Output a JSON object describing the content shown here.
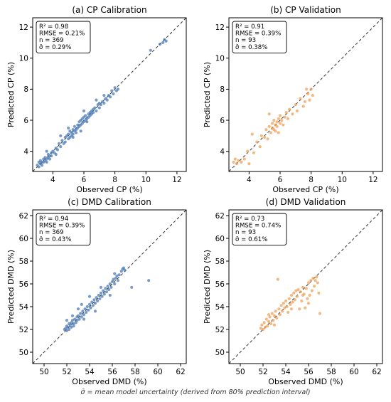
{
  "figure": {
    "footnote": "σ̄ = mean model uncertainty (derived from 80% prediction interval)"
  },
  "chart_data": [
    {
      "type": "scatter",
      "title": "(a) CP Calibration",
      "xlabel": "Observed CP (%)",
      "ylabel": "Predicted CP (%)",
      "xlim": [
        2.7,
        12.6
      ],
      "ylim": [
        2.7,
        12.6
      ],
      "xticks": [
        4,
        6,
        8,
        10,
        12
      ],
      "yticks": [
        4,
        6,
        8,
        10,
        12
      ],
      "color": "#4C7BB4",
      "reference_line": "1:1",
      "stats": [
        "R² = 0.98",
        "RMSE = 0.21%",
        "n = 369",
        "σ̄ = 0.29%"
      ],
      "legend_position": "top-left",
      "points": [
        [
          3.0,
          3.1
        ],
        [
          3.1,
          3.0
        ],
        [
          3.1,
          3.3
        ],
        [
          3.2,
          3.2
        ],
        [
          3.2,
          3.4
        ],
        [
          3.3,
          3.3
        ],
        [
          3.3,
          3.1
        ],
        [
          3.4,
          3.5
        ],
        [
          3.4,
          3.3
        ],
        [
          3.5,
          3.4
        ],
        [
          3.5,
          3.6
        ],
        [
          3.6,
          3.5
        ],
        [
          3.6,
          3.3
        ],
        [
          3.7,
          3.6
        ],
        [
          3.7,
          3.8
        ],
        [
          3.8,
          3.7
        ],
        [
          3.8,
          3.5
        ],
        [
          3.9,
          3.9
        ],
        [
          3.9,
          3.7
        ],
        [
          4.0,
          4.0
        ],
        [
          4.1,
          3.9
        ],
        [
          4.2,
          4.2
        ],
        [
          4.3,
          4.1
        ],
        [
          4.4,
          4.5
        ],
        [
          4.5,
          4.3
        ],
        [
          4.6,
          4.7
        ],
        [
          4.7,
          4.5
        ],
        [
          4.8,
          4.9
        ],
        [
          4.8,
          4.6
        ],
        [
          4.9,
          5.0
        ],
        [
          5.0,
          4.8
        ],
        [
          5.0,
          5.1
        ],
        [
          5.1,
          4.9
        ],
        [
          5.1,
          5.3
        ],
        [
          5.2,
          5.0
        ],
        [
          5.2,
          5.2
        ],
        [
          5.3,
          5.4
        ],
        [
          5.3,
          5.1
        ],
        [
          5.4,
          5.3
        ],
        [
          5.4,
          5.6
        ],
        [
          5.5,
          5.4
        ],
        [
          5.5,
          5.2
        ],
        [
          5.6,
          5.7
        ],
        [
          5.6,
          5.5
        ],
        [
          5.7,
          5.6
        ],
        [
          5.7,
          5.9
        ],
        [
          5.8,
          5.7
        ],
        [
          5.8,
          6.0
        ],
        [
          5.9,
          5.8
        ],
        [
          5.9,
          6.1
        ],
        [
          6.0,
          5.9
        ],
        [
          6.0,
          6.2
        ],
        [
          6.1,
          6.0
        ],
        [
          6.1,
          6.3
        ],
        [
          6.2,
          6.1
        ],
        [
          6.2,
          5.9
        ],
        [
          6.3,
          6.4
        ],
        [
          6.3,
          6.2
        ],
        [
          6.4,
          6.5
        ],
        [
          6.4,
          6.3
        ],
        [
          6.5,
          6.6
        ],
        [
          6.5,
          6.4
        ],
        [
          6.6,
          6.7
        ],
        [
          6.6,
          6.5
        ],
        [
          6.7,
          6.8
        ],
        [
          6.8,
          6.6
        ],
        [
          6.9,
          7.0
        ],
        [
          7.0,
          6.8
        ],
        [
          7.0,
          7.1
        ],
        [
          7.1,
          7.0
        ],
        [
          7.2,
          7.2
        ],
        [
          7.3,
          7.1
        ],
        [
          7.4,
          7.4
        ],
        [
          7.5,
          7.3
        ],
        [
          7.6,
          7.6
        ],
        [
          7.7,
          7.5
        ],
        [
          7.8,
          7.9
        ],
        [
          7.9,
          7.7
        ],
        [
          8.0,
          8.1
        ],
        [
          8.1,
          7.9
        ],
        [
          8.2,
          8.0
        ],
        [
          5.0,
          5.5
        ],
        [
          5.3,
          4.9
        ],
        [
          4.5,
          5.0
        ],
        [
          6.8,
          7.3
        ],
        [
          7.3,
          7.6
        ],
        [
          5.8,
          5.3
        ],
        [
          4.2,
          3.8
        ],
        [
          6.0,
          6.6
        ],
        [
          3.6,
          4.0
        ],
        [
          10.3,
          10.5
        ],
        [
          10.9,
          10.9
        ],
        [
          11.1,
          11.0
        ],
        [
          11.2,
          11.2
        ],
        [
          11.3,
          11.1
        ]
      ]
    },
    {
      "type": "scatter",
      "title": "(b) CP Validation",
      "xlabel": "Observed CP (%)",
      "ylabel": "Predicted CP (%)",
      "xlim": [
        2.7,
        12.6
      ],
      "ylim": [
        2.7,
        12.6
      ],
      "xticks": [
        4,
        6,
        8,
        10,
        12
      ],
      "yticks": [
        4,
        6,
        8,
        10,
        12
      ],
      "color": "#F0A158",
      "reference_line": "1:1",
      "stats": [
        "R² = 0.91",
        "RMSE = 0.39%",
        "n = 93",
        "σ̄ = 0.38%"
      ],
      "legend_position": "top-left",
      "points": [
        [
          3.0,
          3.3
        ],
        [
          3.1,
          3.5
        ],
        [
          3.2,
          3.2
        ],
        [
          3.3,
          3.4
        ],
        [
          3.5,
          3.3
        ],
        [
          3.7,
          3.5
        ],
        [
          3.9,
          4.0
        ],
        [
          4.0,
          3.2
        ],
        [
          4.2,
          5.1
        ],
        [
          4.3,
          3.9
        ],
        [
          4.5,
          4.6
        ],
        [
          4.7,
          4.3
        ],
        [
          4.8,
          5.0
        ],
        [
          5.0,
          4.9
        ],
        [
          5.1,
          5.4
        ],
        [
          5.2,
          4.8
        ],
        [
          5.3,
          5.6
        ],
        [
          5.4,
          5.2
        ],
        [
          5.5,
          5.8
        ],
        [
          5.5,
          5.5
        ],
        [
          5.6,
          5.4
        ],
        [
          5.6,
          6.0
        ],
        [
          5.7,
          5.7
        ],
        [
          5.7,
          5.3
        ],
        [
          5.8,
          5.9
        ],
        [
          5.8,
          5.6
        ],
        [
          5.9,
          6.1
        ],
        [
          6.0,
          5.8
        ],
        [
          6.0,
          6.3
        ],
        [
          6.1,
          6.0
        ],
        [
          6.2,
          5.7
        ],
        [
          6.3,
          6.2
        ],
        [
          6.4,
          6.5
        ],
        [
          6.5,
          6.1
        ],
        [
          6.6,
          6.7
        ],
        [
          6.8,
          6.4
        ],
        [
          7.0,
          7.0
        ],
        [
          7.1,
          6.6
        ],
        [
          7.3,
          7.4
        ],
        [
          7.5,
          6.9
        ],
        [
          7.6,
          7.2
        ],
        [
          7.8,
          7.7
        ],
        [
          7.9,
          7.3
        ],
        [
          8.0,
          8.0
        ],
        [
          8.1,
          7.6
        ],
        [
          7.7,
          8.0
        ],
        [
          5.3,
          6.4
        ],
        [
          5.9,
          5.2
        ]
      ]
    },
    {
      "type": "scatter",
      "title": "(c) DMD Calibration",
      "xlabel": "Observed DMD (%)",
      "ylabel": "Predicted DMD (%)",
      "xlim": [
        49.0,
        62.5
      ],
      "ylim": [
        49.0,
        62.5
      ],
      "xticks": [
        50,
        52,
        54,
        56,
        58,
        60,
        62
      ],
      "yticks": [
        50,
        52,
        54,
        56,
        58,
        60,
        62
      ],
      "color": "#4C7BB4",
      "reference_line": "1:1",
      "stats": [
        "R² = 0.94",
        "RMSE = 0.39%",
        "n = 369",
        "σ̄ = 0.43%"
      ],
      "legend_position": "top-left",
      "points": [
        [
          51.8,
          52.0
        ],
        [
          51.9,
          52.1
        ],
        [
          52.0,
          52.3
        ],
        [
          52.0,
          51.9
        ],
        [
          52.1,
          52.2
        ],
        [
          52.2,
          52.5
        ],
        [
          52.2,
          52.0
        ],
        [
          52.3,
          52.4
        ],
        [
          52.4,
          52.6
        ],
        [
          52.4,
          52.2
        ],
        [
          52.5,
          52.8
        ],
        [
          52.6,
          52.5
        ],
        [
          52.6,
          52.3
        ],
        [
          52.7,
          52.9
        ],
        [
          52.8,
          52.6
        ],
        [
          52.9,
          53.1
        ],
        [
          52.9,
          52.8
        ],
        [
          53.0,
          53.2
        ],
        [
          53.1,
          52.9
        ],
        [
          53.2,
          53.4
        ],
        [
          53.3,
          53.1
        ],
        [
          53.4,
          53.6
        ],
        [
          53.5,
          53.3
        ],
        [
          53.6,
          53.8
        ],
        [
          53.7,
          53.5
        ],
        [
          53.8,
          54.0
        ],
        [
          53.9,
          53.7
        ],
        [
          54.0,
          54.2
        ],
        [
          54.1,
          53.9
        ],
        [
          54.2,
          54.4
        ],
        [
          54.3,
          54.1
        ],
        [
          54.4,
          54.6
        ],
        [
          54.5,
          54.3
        ],
        [
          54.6,
          54.8
        ],
        [
          54.7,
          54.5
        ],
        [
          54.8,
          55.0
        ],
        [
          54.9,
          54.7
        ],
        [
          55.0,
          55.2
        ],
        [
          55.1,
          54.9
        ],
        [
          55.2,
          55.4
        ],
        [
          55.3,
          55.1
        ],
        [
          55.4,
          55.6
        ],
        [
          55.5,
          55.3
        ],
        [
          55.6,
          55.8
        ],
        [
          55.7,
          55.5
        ],
        [
          55.8,
          56.0
        ],
        [
          55.9,
          55.7
        ],
        [
          56.0,
          56.2
        ],
        [
          56.1,
          56.4
        ],
        [
          56.2,
          56.0
        ],
        [
          56.3,
          56.5
        ],
        [
          56.4,
          56.7
        ],
        [
          56.5,
          56.3
        ],
        [
          56.6,
          56.8
        ],
        [
          56.8,
          57.1
        ],
        [
          56.9,
          57.3
        ],
        [
          57.0,
          57.4
        ],
        [
          57.1,
          57.2
        ],
        [
          53.0,
          53.8
        ],
        [
          53.5,
          52.9
        ],
        [
          54.0,
          54.9
        ],
        [
          54.5,
          53.6
        ],
        [
          55.0,
          55.7
        ],
        [
          52.5,
          53.2
        ],
        [
          55.8,
          55.0
        ],
        [
          56.2,
          56.9
        ],
        [
          57.7,
          55.7
        ],
        [
          59.2,
          56.3
        ],
        [
          52.0,
          52.8
        ],
        [
          53.3,
          54.2
        ]
      ]
    },
    {
      "type": "scatter",
      "title": "(d) DMD Validation",
      "xlabel": "Observed DMD (%)",
      "ylabel": "Predicted DMD (%)",
      "xlim": [
        49.0,
        62.5
      ],
      "ylim": [
        49.0,
        62.5
      ],
      "xticks": [
        50,
        52,
        54,
        56,
        58,
        60,
        62
      ],
      "yticks": [
        50,
        52,
        54,
        56,
        58,
        60,
        62
      ],
      "color": "#F0A158",
      "reference_line": "1:1",
      "stats": [
        "R² = 0.73",
        "RMSE = 0.74%",
        "n = 93",
        "σ̄ = 0.61%"
      ],
      "legend_position": "top-left",
      "points": [
        [
          51.8,
          52.1
        ],
        [
          51.9,
          52.4
        ],
        [
          52.0,
          52.0
        ],
        [
          52.1,
          52.6
        ],
        [
          52.2,
          52.2
        ],
        [
          52.3,
          52.9
        ],
        [
          52.4,
          52.3
        ],
        [
          52.5,
          52.7
        ],
        [
          52.6,
          53.1
        ],
        [
          52.7,
          52.5
        ],
        [
          52.8,
          53.4
        ],
        [
          52.9,
          52.8
        ],
        [
          53.0,
          53.2
        ],
        [
          53.1,
          53.6
        ],
        [
          53.2,
          53.0
        ],
        [
          53.3,
          56.4
        ],
        [
          53.4,
          53.8
        ],
        [
          53.5,
          53.3
        ],
        [
          53.6,
          54.1
        ],
        [
          53.7,
          53.6
        ],
        [
          53.8,
          54.3
        ],
        [
          53.9,
          53.9
        ],
        [
          54.0,
          54.5
        ],
        [
          54.1,
          54.0
        ],
        [
          54.2,
          53.5
        ],
        [
          54.3,
          54.7
        ],
        [
          54.4,
          54.2
        ],
        [
          54.5,
          55.0
        ],
        [
          54.6,
          54.4
        ],
        [
          54.7,
          55.2
        ],
        [
          54.8,
          54.6
        ],
        [
          54.9,
          55.4
        ],
        [
          55.0,
          54.9
        ],
        [
          55.1,
          55.5
        ],
        [
          55.2,
          53.8
        ],
        [
          55.3,
          55.3
        ],
        [
          55.4,
          54.5
        ],
        [
          55.5,
          55.7
        ],
        [
          55.6,
          55.1
        ],
        [
          55.7,
          53.9
        ],
        [
          55.8,
          55.6
        ],
        [
          55.9,
          54.7
        ],
        [
          56.0,
          56.1
        ],
        [
          56.1,
          55.0
        ],
        [
          56.2,
          56.3
        ],
        [
          56.3,
          55.4
        ],
        [
          56.4,
          56.5
        ],
        [
          56.5,
          55.8
        ],
        [
          56.6,
          56.3
        ],
        [
          56.7,
          56.6
        ],
        [
          56.8,
          56.1
        ],
        [
          56.9,
          55.2
        ],
        [
          57.0,
          53.4
        ],
        [
          52.5,
          53.3
        ],
        [
          53.0,
          52.4
        ],
        [
          54.5,
          53.8
        ],
        [
          55.5,
          55.0
        ],
        [
          56.0,
          54.3
        ]
      ]
    }
  ]
}
